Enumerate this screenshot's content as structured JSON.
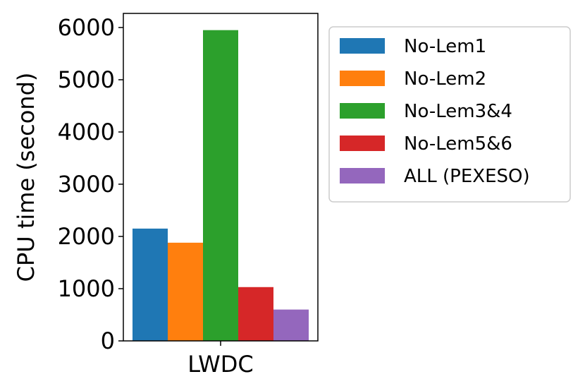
{
  "chart_data": {
    "type": "bar",
    "categories": [
      "LWDC"
    ],
    "series": [
      {
        "name": "No-Lem1",
        "values": [
          2150
        ],
        "color": "#1f77b4"
      },
      {
        "name": "No-Lem2",
        "values": [
          1880
        ],
        "color": "#ff7f0e"
      },
      {
        "name": "No-Lem3&4",
        "values": [
          5950
        ],
        "color": "#2ca02c"
      },
      {
        "name": "No-Lem5&6",
        "values": [
          1030
        ],
        "color": "#d62728"
      },
      {
        "name": "ALL (PEXESO)",
        "values": [
          600
        ],
        "color": "#9467bd"
      }
    ],
    "ylabel": "CPU time (second)",
    "ylim": [
      0,
      6270
    ],
    "yticks": [
      "0",
      "1000",
      "2000",
      "3000",
      "4000",
      "5000",
      "6000"
    ],
    "grid": false,
    "legend": "outside-right"
  }
}
